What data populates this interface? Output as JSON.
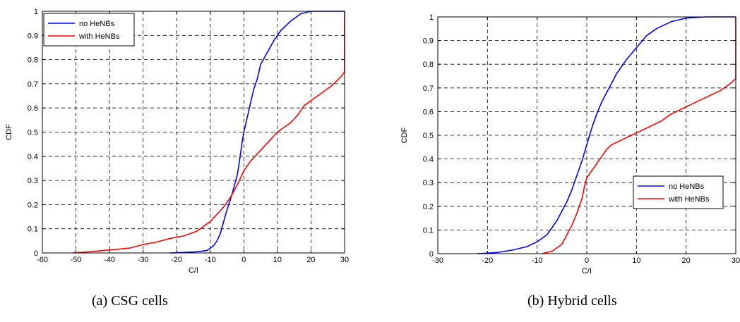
{
  "chart_data": [
    {
      "type": "line",
      "caption": "(a)   CSG cells",
      "xlabel": "C/I",
      "ylabel": "CDF",
      "xlim": [
        -60,
        30
      ],
      "ylim": [
        0,
        1
      ],
      "xticks": [
        -60,
        -50,
        -40,
        -30,
        -20,
        -10,
        0,
        10,
        20,
        30
      ],
      "yticks": [
        0,
        0.1,
        0.2,
        0.3,
        0.4,
        0.5,
        0.6,
        0.7,
        0.8,
        0.9,
        1
      ],
      "grid": true,
      "legend_position": "top-left",
      "series": [
        {
          "name": "no HeNBs",
          "color": "#0000ff",
          "points": [
            [
              -22,
              0
            ],
            [
              -18,
              0.002
            ],
            [
              -14,
              0.005
            ],
            [
              -11,
              0.01
            ],
            [
              -9,
              0.03
            ],
            [
              -8,
              0.05
            ],
            [
              -7,
              0.08
            ],
            [
              -6,
              0.13
            ],
            [
              -5,
              0.18
            ],
            [
              -4,
              0.22
            ],
            [
              -3,
              0.27
            ],
            [
              -2,
              0.32
            ],
            [
              -1.5,
              0.36
            ],
            [
              -1,
              0.41
            ],
            [
              -0.5,
              0.46
            ],
            [
              0,
              0.5
            ],
            [
              1,
              0.56
            ],
            [
              2,
              0.62
            ],
            [
              3,
              0.68
            ],
            [
              4,
              0.72
            ],
            [
              5,
              0.78
            ],
            [
              7,
              0.83
            ],
            [
              9,
              0.88
            ],
            [
              11,
              0.92
            ],
            [
              14,
              0.96
            ],
            [
              17,
              0.99
            ],
            [
              20,
              1
            ],
            [
              30,
              1
            ]
          ]
        },
        {
          "name": "with HeNBs",
          "color": "#ff0000",
          "points": [
            [
              -51,
              0
            ],
            [
              -46,
              0.005
            ],
            [
              -42,
              0.01
            ],
            [
              -38,
              0.015
            ],
            [
              -34,
              0.02
            ],
            [
              -30,
              0.035
            ],
            [
              -26,
              0.045
            ],
            [
              -22,
              0.06
            ],
            [
              -18,
              0.07
            ],
            [
              -14,
              0.09
            ],
            [
              -12,
              0.11
            ],
            [
              -10,
              0.13
            ],
            [
              -8,
              0.16
            ],
            [
              -6,
              0.19
            ],
            [
              -4,
              0.23
            ],
            [
              -2,
              0.28
            ],
            [
              0,
              0.34
            ],
            [
              2,
              0.38
            ],
            [
              4,
              0.41
            ],
            [
              6,
              0.44
            ],
            [
              8,
              0.47
            ],
            [
              10,
              0.5
            ],
            [
              12,
              0.52
            ],
            [
              14,
              0.54
            ],
            [
              16,
              0.57
            ],
            [
              18,
              0.61
            ],
            [
              20,
              0.63
            ],
            [
              23,
              0.66
            ],
            [
              26,
              0.69
            ],
            [
              29,
              0.73
            ],
            [
              30,
              0.75
            ],
            [
              30,
              1
            ]
          ]
        }
      ]
    },
    {
      "type": "line",
      "caption": "(b) Hybrid cells",
      "xlabel": "C/I",
      "ylabel": "CDF",
      "xlim": [
        -30,
        30
      ],
      "ylim": [
        0,
        1
      ],
      "xticks": [
        -30,
        -20,
        -10,
        0,
        10,
        20,
        30
      ],
      "yticks": [
        0,
        0.1,
        0.2,
        0.3,
        0.4,
        0.5,
        0.6,
        0.7,
        0.8,
        0.9,
        1
      ],
      "grid": true,
      "legend_position": "center-right",
      "series": [
        {
          "name": "no HeNBs",
          "color": "#0000ff",
          "points": [
            [
              -22,
              0
            ],
            [
              -18,
              0.005
            ],
            [
              -15,
              0.015
            ],
            [
              -12,
              0.03
            ],
            [
              -10,
              0.05
            ],
            [
              -8,
              0.08
            ],
            [
              -7,
              0.11
            ],
            [
              -6,
              0.14
            ],
            [
              -5,
              0.18
            ],
            [
              -4,
              0.22
            ],
            [
              -3,
              0.27
            ],
            [
              -2,
              0.33
            ],
            [
              -1,
              0.39
            ],
            [
              0,
              0.46
            ],
            [
              1,
              0.53
            ],
            [
              2,
              0.59
            ],
            [
              3,
              0.64
            ],
            [
              4,
              0.68
            ],
            [
              5,
              0.72
            ],
            [
              6,
              0.76
            ],
            [
              8,
              0.82
            ],
            [
              10,
              0.87
            ],
            [
              12,
              0.92
            ],
            [
              14,
              0.95
            ],
            [
              17,
              0.98
            ],
            [
              20,
              0.995
            ],
            [
              24,
              1
            ],
            [
              30,
              1
            ]
          ]
        },
        {
          "name": "with HeNBs",
          "color": "#ff0000",
          "points": [
            [
              -9,
              0
            ],
            [
              -7,
              0.01
            ],
            [
              -5,
              0.04
            ],
            [
              -4,
              0.08
            ],
            [
              -3,
              0.12
            ],
            [
              -2,
              0.17
            ],
            [
              -1,
              0.23
            ],
            [
              -0.5,
              0.28
            ],
            [
              0,
              0.32
            ],
            [
              1,
              0.35
            ],
            [
              2,
              0.38
            ],
            [
              3,
              0.41
            ],
            [
              4,
              0.44
            ],
            [
              5,
              0.46
            ],
            [
              7,
              0.48
            ],
            [
              9,
              0.5
            ],
            [
              11,
              0.52
            ],
            [
              13,
              0.54
            ],
            [
              15,
              0.56
            ],
            [
              17,
              0.59
            ],
            [
              19,
              0.61
            ],
            [
              21,
              0.63
            ],
            [
              24,
              0.66
            ],
            [
              27,
              0.69
            ],
            [
              29,
              0.72
            ],
            [
              30,
              0.74
            ],
            [
              30,
              1
            ]
          ]
        }
      ]
    }
  ]
}
